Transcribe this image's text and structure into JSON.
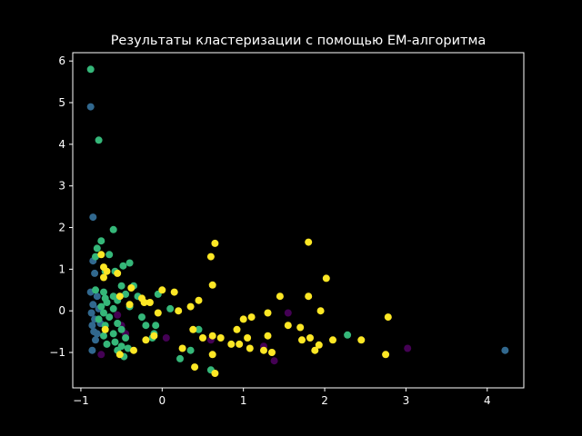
{
  "chart_data": {
    "type": "scatter",
    "title": "Результаты кластеризации с помощью EM-алгоритма",
    "xlabel": "",
    "ylabel": "",
    "xlim": [
      -1.1,
      4.45
    ],
    "ylim": [
      -1.85,
      6.2
    ],
    "xticks": [
      -1,
      0,
      1,
      2,
      3,
      4
    ],
    "yticks": [
      -1,
      0,
      1,
      2,
      3,
      4,
      5,
      6
    ],
    "grid": false,
    "legend": "none",
    "colors": {
      "background": "#000000",
      "axes": "#ffffff",
      "text": "#ffffff"
    },
    "series": [
      {
        "color": "#440154",
        "points": [
          [
            -0.55,
            -0.1
          ],
          [
            -0.5,
            -0.35
          ],
          [
            -0.75,
            -1.05
          ],
          [
            0.05,
            -0.65
          ],
          [
            0.6,
            -0.7
          ],
          [
            1.25,
            -0.85
          ],
          [
            1.38,
            -1.2
          ],
          [
            1.55,
            -0.05
          ],
          [
            3.02,
            -0.9
          ],
          [
            -0.45,
            -0.55
          ]
        ]
      },
      {
        "color": "#31688e",
        "points": [
          [
            -0.88,
            4.9
          ],
          [
            -0.85,
            2.25
          ],
          [
            -0.85,
            1.2
          ],
          [
            -0.83,
            0.9
          ],
          [
            -0.88,
            0.45
          ],
          [
            -0.85,
            0.15
          ],
          [
            -0.87,
            -0.05
          ],
          [
            -0.83,
            -0.2
          ],
          [
            -0.86,
            -0.35
          ],
          [
            -0.84,
            -0.5
          ],
          [
            -0.82,
            -0.7
          ],
          [
            -0.86,
            -0.95
          ],
          [
            -0.8,
            -0.55
          ],
          [
            -0.78,
            0.05
          ],
          [
            -0.76,
            -0.3
          ],
          [
            -0.8,
            0.35
          ],
          [
            4.22,
            -0.95
          ]
        ]
      },
      {
        "color": "#35b779",
        "points": [
          [
            -0.88,
            5.8
          ],
          [
            -0.78,
            4.1
          ],
          [
            -0.6,
            1.95
          ],
          [
            -0.75,
            1.68
          ],
          [
            -0.8,
            1.5
          ],
          [
            -0.65,
            1.35
          ],
          [
            -0.82,
            1.3
          ],
          [
            -0.4,
            1.15
          ],
          [
            -0.48,
            1.08
          ],
          [
            -0.58,
            0.95
          ],
          [
            -0.7,
            0.95
          ],
          [
            -0.35,
            0.6
          ],
          [
            -0.5,
            0.6
          ],
          [
            -0.82,
            0.5
          ],
          [
            -0.72,
            0.45
          ],
          [
            -0.6,
            0.35
          ],
          [
            -0.7,
            0.3
          ],
          [
            -0.45,
            0.4
          ],
          [
            -0.3,
            0.35
          ],
          [
            -0.55,
            0.25
          ],
          [
            -0.68,
            0.2
          ],
          [
            -0.4,
            0.1
          ],
          [
            -0.75,
            0.1
          ],
          [
            -0.6,
            0.05
          ],
          [
            -0.72,
            -0.05
          ],
          [
            -0.65,
            -0.15
          ],
          [
            -0.78,
            -0.2
          ],
          [
            -0.55,
            -0.3
          ],
          [
            -0.7,
            -0.35
          ],
          [
            -0.5,
            -0.45
          ],
          [
            -0.6,
            -0.55
          ],
          [
            -0.72,
            -0.6
          ],
          [
            -0.45,
            -0.65
          ],
          [
            -0.58,
            -0.75
          ],
          [
            -0.68,
            -0.8
          ],
          [
            -0.5,
            -0.85
          ],
          [
            -0.42,
            -0.9
          ],
          [
            -0.55,
            -0.95
          ],
          [
            -0.47,
            -1.1
          ],
          [
            -0.25,
            -0.15
          ],
          [
            -0.2,
            -0.35
          ],
          [
            -0.1,
            -0.55
          ],
          [
            -0.12,
            -0.65
          ],
          [
            -0.05,
            0.4
          ],
          [
            0.1,
            0.05
          ],
          [
            0.35,
            -0.95
          ],
          [
            0.45,
            -0.45
          ],
          [
            0.22,
            -1.15
          ],
          [
            0.6,
            -1.42
          ],
          [
            2.28,
            -0.58
          ],
          [
            -0.08,
            -0.35
          ]
        ]
      },
      {
        "color": "#fde725",
        "points": [
          [
            -0.75,
            1.35
          ],
          [
            -0.72,
            1.05
          ],
          [
            -0.68,
            0.95
          ],
          [
            -0.55,
            0.9
          ],
          [
            -0.72,
            0.8
          ],
          [
            -0.38,
            0.55
          ],
          [
            -0.25,
            0.3
          ],
          [
            -0.22,
            0.2
          ],
          [
            -0.15,
            0.2
          ],
          [
            0.0,
            0.5
          ],
          [
            0.15,
            0.45
          ],
          [
            -0.05,
            -0.05
          ],
          [
            0.2,
            0.0
          ],
          [
            0.35,
            0.1
          ],
          [
            0.45,
            0.25
          ],
          [
            -0.4,
            0.15
          ],
          [
            -0.52,
            0.35
          ],
          [
            -0.7,
            -0.45
          ],
          [
            -0.2,
            -0.7
          ],
          [
            -0.1,
            -0.6
          ],
          [
            0.38,
            -0.45
          ],
          [
            0.5,
            -0.65
          ],
          [
            0.62,
            -0.6
          ],
          [
            0.72,
            -0.65
          ],
          [
            0.85,
            -0.8
          ],
          [
            0.95,
            -0.8
          ],
          [
            1.05,
            -0.65
          ],
          [
            1.08,
            -0.9
          ],
          [
            0.92,
            -0.45
          ],
          [
            1.0,
            -0.2
          ],
          [
            1.1,
            -0.15
          ],
          [
            1.3,
            -0.05
          ],
          [
            1.45,
            0.35
          ],
          [
            1.55,
            -0.35
          ],
          [
            1.3,
            -0.6
          ],
          [
            1.35,
            -1.0
          ],
          [
            1.25,
            -0.95
          ],
          [
            1.7,
            -0.4
          ],
          [
            1.72,
            -0.7
          ],
          [
            1.82,
            -0.65
          ],
          [
            1.88,
            -0.95
          ],
          [
            1.93,
            -0.82
          ],
          [
            1.8,
            0.35
          ],
          [
            1.95,
            0.0
          ],
          [
            2.02,
            0.78
          ],
          [
            2.1,
            -0.7
          ],
          [
            2.45,
            -0.7
          ],
          [
            2.75,
            -1.05
          ],
          [
            2.78,
            -0.15
          ],
          [
            1.8,
            1.65
          ],
          [
            0.65,
            1.62
          ],
          [
            0.6,
            1.3
          ],
          [
            0.62,
            0.62
          ],
          [
            0.25,
            -0.9
          ],
          [
            0.4,
            -1.35
          ],
          [
            0.62,
            -1.05
          ],
          [
            0.65,
            -1.5
          ],
          [
            -0.52,
            -1.05
          ],
          [
            -0.35,
            -0.95
          ]
        ]
      }
    ]
  }
}
